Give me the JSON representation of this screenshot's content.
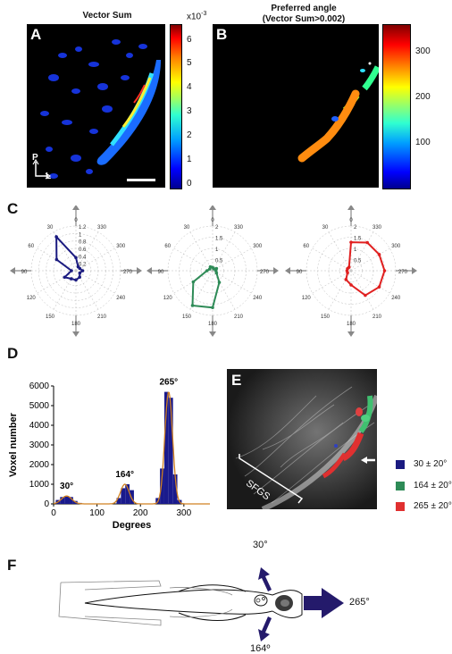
{
  "panelA": {
    "letter": "A",
    "title": "Vector Sum",
    "colorbar_exponent": "x10",
    "colorbar_exponent_power": "-3",
    "colorbar_ticks": [
      "6",
      "5",
      "4",
      "3",
      "2",
      "1",
      "0"
    ],
    "orientation_p": "P",
    "orientation_l": "L"
  },
  "panelB": {
    "letter": "B",
    "title_line1": "Preferred angle",
    "title_line2": "(Vector Sum>0.002)",
    "colorbar_ticks": [
      "300",
      "200",
      "100"
    ]
  },
  "panelC": {
    "letter": "C",
    "angle_labels": [
      "0",
      "30",
      "60",
      "90",
      "120",
      "150",
      "180",
      "210",
      "240",
      "270",
      "300",
      "330"
    ],
    "plots": [
      {
        "name": "30",
        "color": "#1a1a80",
        "radial_ticks": [
          "1.2",
          "1",
          "0.8",
          "0.6",
          "0.4",
          "0.2"
        ],
        "rmax": 1.2,
        "values": [
          0.35,
          1.05,
          0.6,
          0.12,
          0.35,
          0.25,
          0.25,
          0.2,
          0.12,
          0.18,
          0.12,
          0.12
        ]
      },
      {
        "name": "164",
        "color": "#2e8b57",
        "radial_ticks": [
          "2",
          "1.5",
          "1",
          "0.5"
        ],
        "rmax": 2.0,
        "values": [
          0.15,
          0.2,
          0.15,
          0.25,
          1.0,
          1.8,
          1.65,
          0.6,
          0.2,
          0.15,
          0.2,
          0.1
        ]
      },
      {
        "name": "265",
        "color": "#e02020",
        "radial_ticks": [
          "2",
          "1.5",
          "1",
          "0.5"
        ],
        "rmax": 2.2,
        "values": [
          1.4,
          0.2,
          0.2,
          0.2,
          0.2,
          0.5,
          0.7,
          1.4,
          1.6,
          1.65,
          1.6,
          1.6
        ]
      }
    ]
  },
  "panelD": {
    "letter": "D",
    "ylabel": "Voxel number",
    "xlabel": "Degrees",
    "y_ticks": [
      "0",
      "1000",
      "2000",
      "3000",
      "4000",
      "5000",
      "6000"
    ],
    "x_ticks": [
      "0",
      "100",
      "200",
      "300"
    ],
    "peak_labels": [
      "30°",
      "164°",
      "265°"
    ]
  },
  "chart_data": {
    "type": "bar",
    "xlabel": "Degrees",
    "ylabel": "Voxel number",
    "xlim": [
      0,
      360
    ],
    "ylim": [
      0,
      6000
    ],
    "x": [
      10,
      20,
      30,
      40,
      50,
      60,
      150,
      160,
      170,
      180,
      240,
      250,
      260,
      270,
      280,
      290
    ],
    "values": [
      200,
      350,
      400,
      350,
      150,
      50,
      300,
      800,
      1000,
      700,
      300,
      1800,
      5700,
      5400,
      1500,
      200
    ],
    "peaks": [
      30,
      164,
      265
    ]
  },
  "panelE": {
    "letter": "E",
    "sfgs_label": "SFGS",
    "legend": [
      {
        "label": "30 ± 20°",
        "color": "#1a1a80"
      },
      {
        "label": "164 ± 20°",
        "color": "#2e8b57"
      },
      {
        "label": "265 ± 20°",
        "color": "#e03030"
      }
    ]
  },
  "panelF": {
    "letter": "F",
    "arrow_labels": [
      "30°",
      "265°",
      "164º"
    ],
    "arrow_color": "#241a6b"
  }
}
